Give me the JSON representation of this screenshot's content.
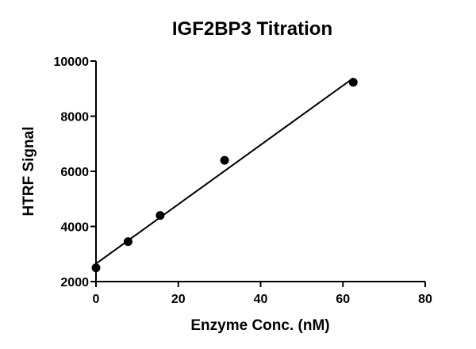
{
  "chart_data": {
    "type": "scatter",
    "title": "IGF2BP3 Titration",
    "xlabel": "Enzyme Conc. (nM)",
    "ylabel": "HTRF Signal",
    "xlim": [
      0,
      80
    ],
    "ylim": [
      2000,
      10000
    ],
    "x_ticks": [
      "0",
      "20",
      "40",
      "60",
      "80"
    ],
    "y_ticks": [
      "2000",
      "4000",
      "6000",
      "8000",
      "10000"
    ],
    "grid": false,
    "legend": "none",
    "points": [
      {
        "x": 0,
        "y": 2500
      },
      {
        "x": 7.8,
        "y": 3450
      },
      {
        "x": 15.6,
        "y": 4400
      },
      {
        "x": 31.25,
        "y": 6400
      },
      {
        "x": 62.5,
        "y": 9230
      }
    ],
    "fit_line": {
      "x": [
        0,
        62.5
      ],
      "y": [
        2650,
        9380
      ]
    }
  }
}
